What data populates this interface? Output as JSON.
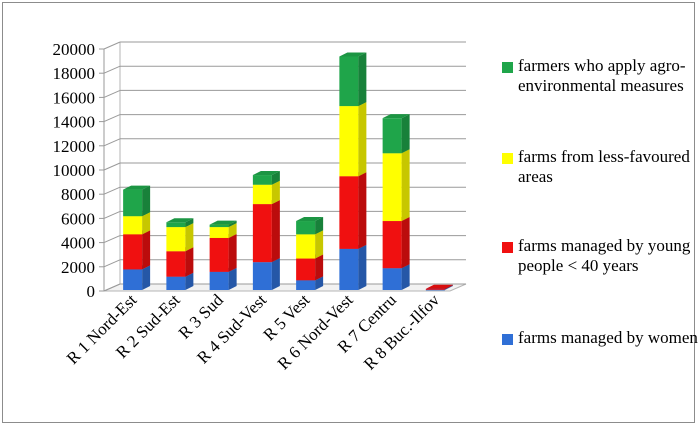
{
  "chart_data": {
    "type": "bar",
    "stacked": true,
    "three_d": true,
    "categories": [
      "R 1 Nord-Est",
      "R 2 Sud-Est",
      "R 3 Sud",
      "R 4 Sud-Vest",
      "R 5 Vest",
      "R 6 Nord-Vest",
      "R 7 Centru",
      "R 8 Buc.-Ilfov"
    ],
    "series": [
      {
        "name": "farms managed by women",
        "color": "#2f6fd6",
        "values": [
          1700,
          1100,
          1500,
          2300,
          800,
          3400,
          1800,
          50
        ]
      },
      {
        "name": "farms managed by young people < 40 years",
        "color": "#f01010",
        "values": [
          2900,
          2100,
          2800,
          4800,
          1800,
          6000,
          3900,
          50
        ]
      },
      {
        "name": "farms from less-favoured areas",
        "color": "#ffff00",
        "values": [
          1500,
          2000,
          900,
          1600,
          2000,
          5800,
          5600,
          0
        ]
      },
      {
        "name": "farmers who apply agro-environmental measures",
        "color": "#1fa54a",
        "values": [
          2200,
          400,
          200,
          800,
          1100,
          4100,
          2900,
          0
        ]
      }
    ],
    "legend_order": [
      3,
      2,
      1,
      0
    ],
    "ylim": [
      0,
      20000
    ],
    "yticks": [
      "0",
      "2000",
      "4000",
      "6000",
      "8000",
      "10000",
      "12000",
      "14000",
      "16000",
      "18000",
      "20000"
    ],
    "grid": true,
    "legend_position": "right",
    "title": "",
    "xlabel": "",
    "ylabel": ""
  }
}
